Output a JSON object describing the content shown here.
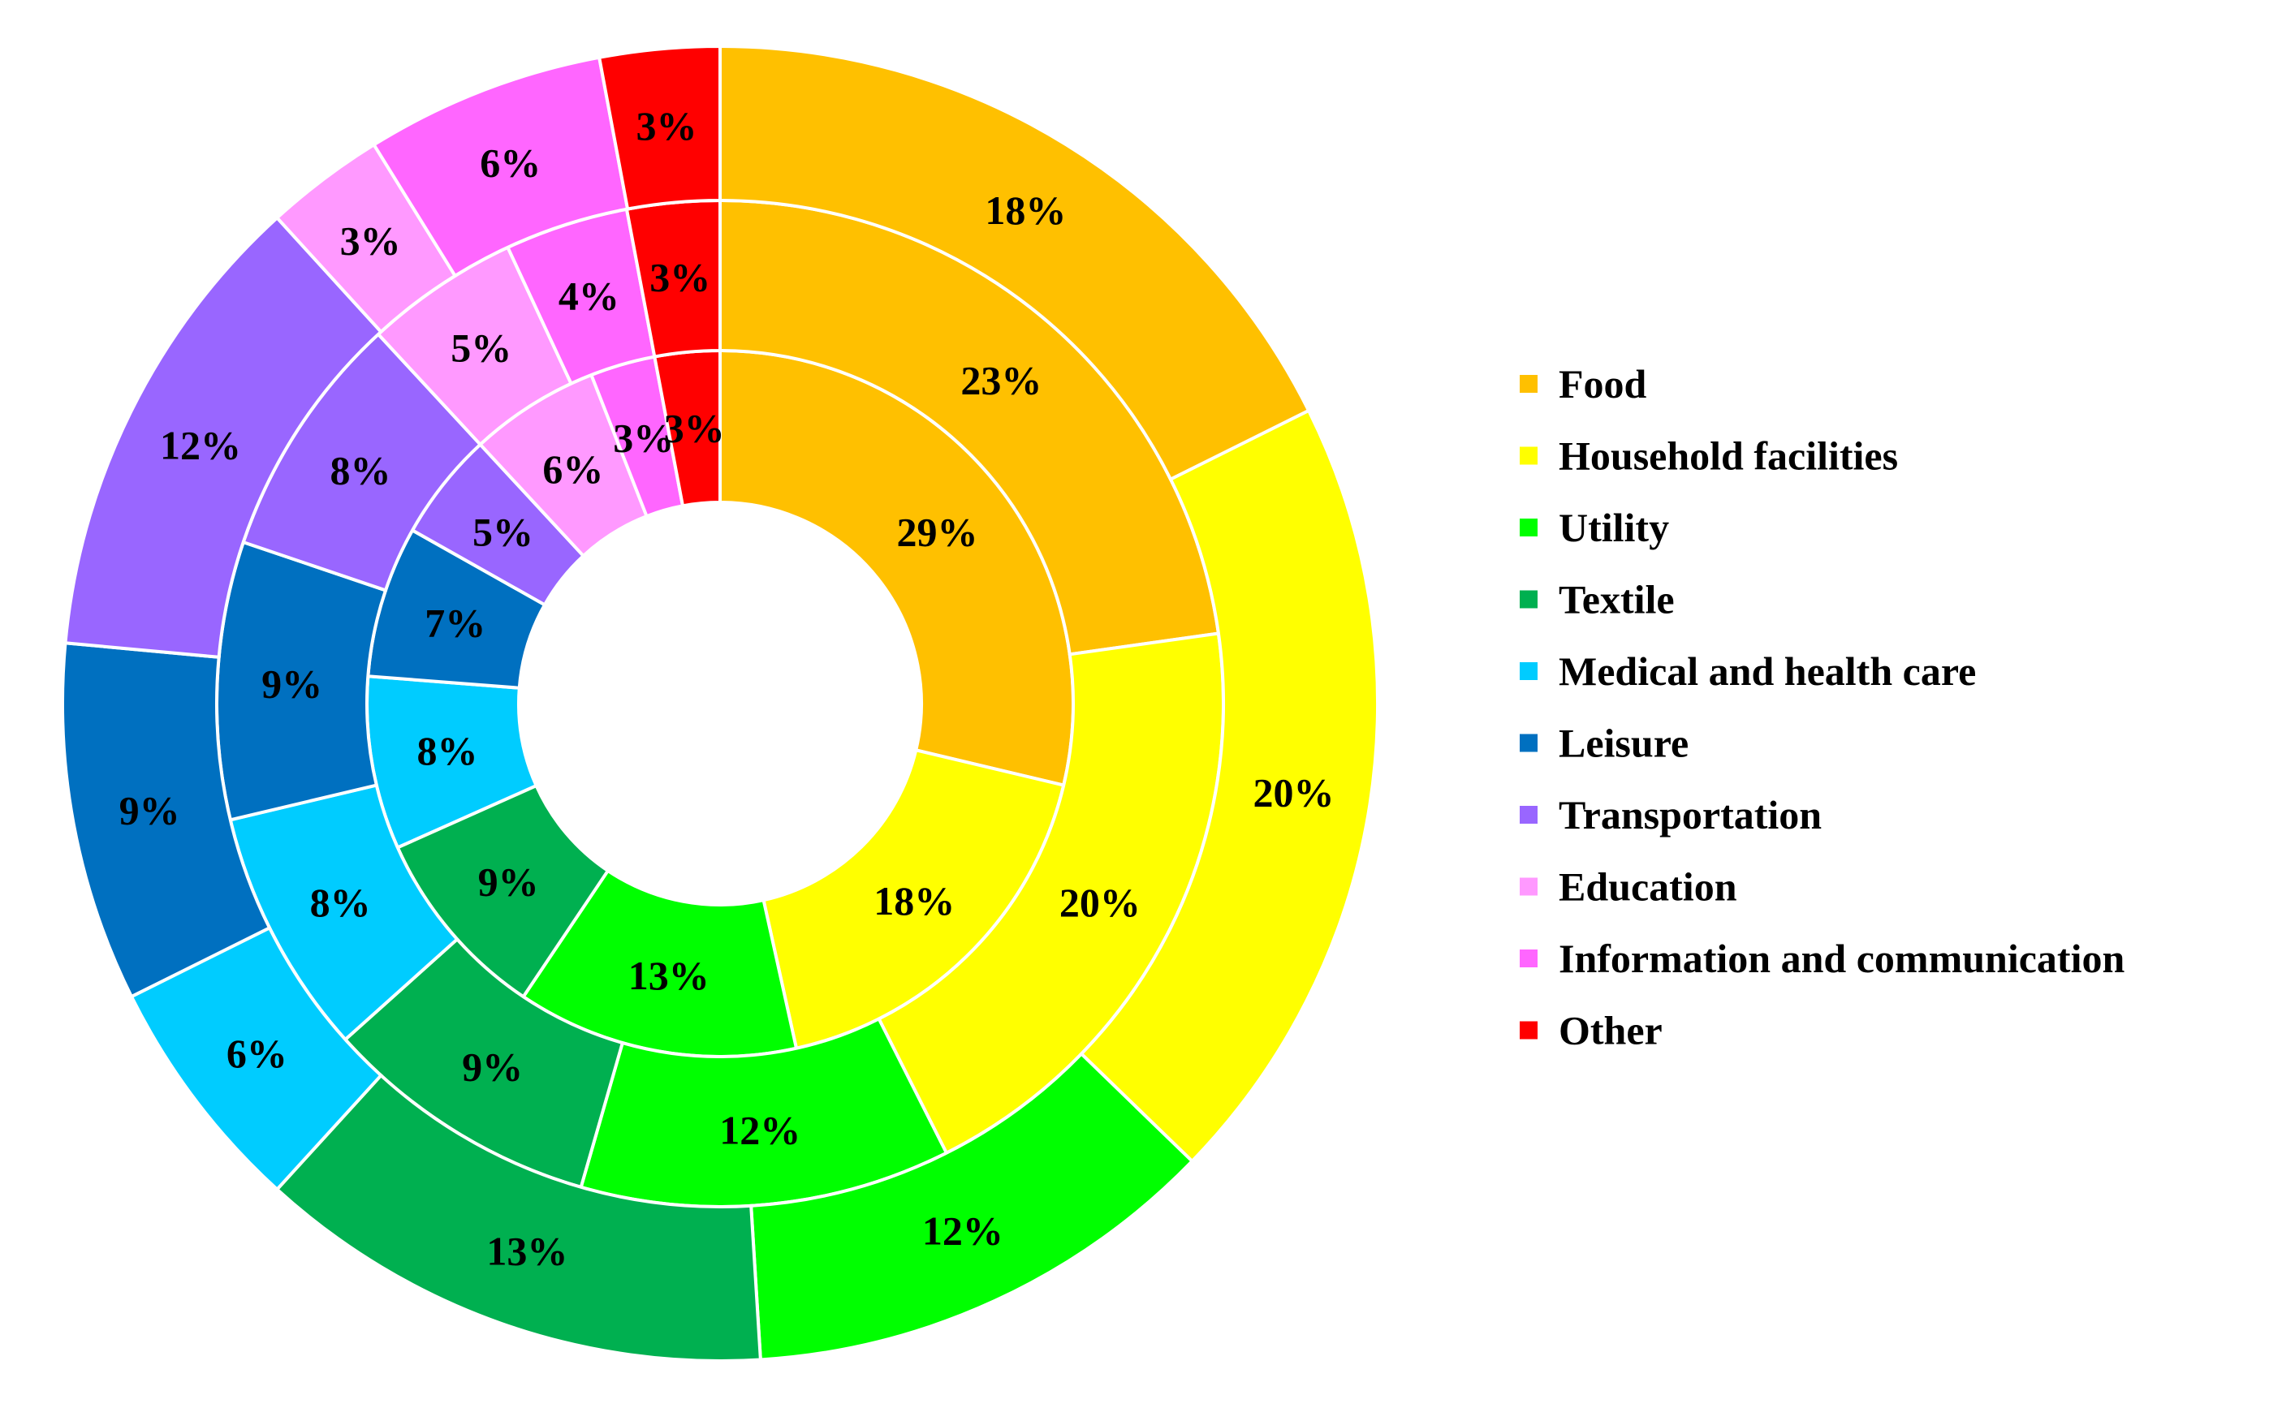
{
  "chart_data": {
    "type": "pie",
    "variant": "nested-donut",
    "title": "",
    "categories": [
      "Food",
      "Household facilities",
      "Utility",
      "Textile",
      "Medical and health care",
      "Leisure",
      "Transportation",
      "Education",
      "Information and communication",
      "Other"
    ],
    "colors": [
      "#FFC000",
      "#FFFF00",
      "#00FF00",
      "#00B050",
      "#00CCFF",
      "#0070C0",
      "#9966FF",
      "#FF99FF",
      "#FF66FF",
      "#FF0000"
    ],
    "series": [
      {
        "name": "inner ring",
        "values": [
          29,
          18,
          13,
          9,
          8,
          7,
          5,
          6,
          3,
          3
        ],
        "labels": [
          "29%",
          "18%",
          "13%",
          "9%",
          "8%",
          "7%",
          "5%",
          "6%",
          "3%",
          "3%"
        ]
      },
      {
        "name": "middle ring",
        "values": [
          23,
          20,
          12,
          9,
          8,
          9,
          8,
          5,
          4,
          3
        ],
        "labels": [
          "23%",
          "20%",
          "12%",
          "9%",
          "8%",
          "9%",
          "8%",
          "5%",
          "4%",
          "3%"
        ]
      },
      {
        "name": "outer ring",
        "values": [
          18,
          20,
          12,
          13,
          6,
          9,
          12,
          3,
          6,
          3
        ],
        "labels": [
          "18%",
          "20%",
          "12%",
          "13%",
          "6%",
          "9%",
          "12%",
          "3%",
          "6%",
          "3%"
        ]
      }
    ],
    "legend": {
      "position": "right",
      "entries": [
        "Food",
        "Household facilities",
        "Utility",
        "Textile",
        "Medical and health care",
        "Leisure",
        "Transportation",
        "Education",
        "Information and communication",
        "Other"
      ]
    }
  }
}
